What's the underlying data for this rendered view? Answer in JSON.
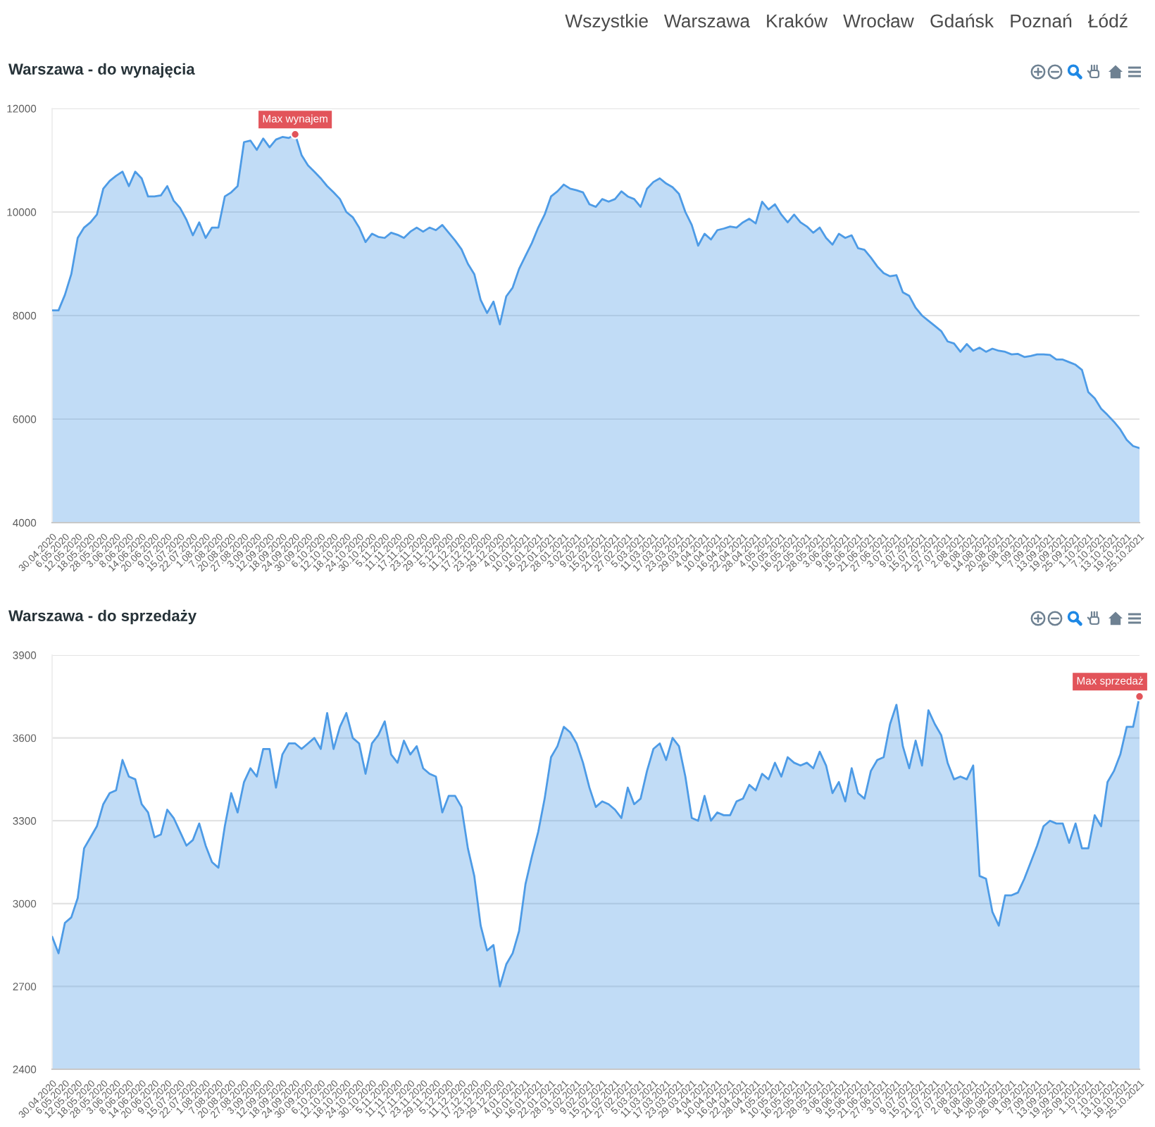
{
  "chart_data": [
    {
      "type": "area",
      "title": "Warszawa - do wynajęcia",
      "categories": [
        "30.04.2020",
        null,
        "6.05.2020",
        null,
        "12.05.2020",
        null,
        "18.05.2020",
        null,
        "28.05.2020",
        null,
        "3.06.2020",
        null,
        "8.06.2020",
        null,
        "14.06.2020",
        null,
        "20.06.2020",
        null,
        "9.07.2020",
        null,
        "15.07.2020",
        null,
        "22.07.2020",
        null,
        "1.08.2020",
        null,
        "7.08.2020",
        null,
        "20.08.2020",
        null,
        "27.08.2020",
        null,
        "3.09.2020",
        null,
        "12.09.2020",
        null,
        "18.09.2020",
        null,
        "24.09.2020",
        null,
        "30.09.2020",
        null,
        "6.10.2020",
        null,
        "12.10.2020",
        null,
        "18.10.2020",
        null,
        "24.10.2020",
        null,
        "30.10.2020",
        null,
        "5.11.2020",
        null,
        "11.11.2020",
        null,
        "17.11.2020",
        null,
        "23.11.2020",
        null,
        "29.11.2020",
        null,
        "5.12.2020",
        null,
        "11.12.2020",
        null,
        "17.12.2020",
        null,
        "23.12.2020",
        null,
        "29.12.2020",
        null,
        "4.01.2021",
        null,
        "10.01.2021",
        null,
        "16.01.2021",
        null,
        "22.01.2021",
        null,
        "28.01.2021",
        null,
        "3.02.2021",
        null,
        "9.02.2021",
        null,
        "15.02.2021",
        null,
        "21.02.2021",
        null,
        "27.02.2021",
        null,
        "5.03.2021",
        null,
        "11.03.2021",
        null,
        "17.03.2021",
        null,
        "23.03.2021",
        null,
        "29.03.2021",
        null,
        "4.04.2021",
        null,
        "10.04.2021",
        null,
        "16.04.2021",
        null,
        "22.04.2021",
        null,
        "28.04.2021",
        null,
        "4.05.2021",
        null,
        "10.05.2021",
        null,
        "16.05.2021",
        null,
        "22.05.2021",
        null,
        "28.05.2021",
        null,
        "3.06.2021",
        null,
        "9.06.2021",
        null,
        "15.06.2021",
        null,
        "21.06.2021",
        null,
        "27.06.2021",
        null,
        "3.07.2021",
        null,
        "9.07.2021",
        null,
        "15.07.2021",
        null,
        "21.07.2021",
        null,
        "27.07.2021",
        null,
        "2.08.2021",
        null,
        "8.08.2021",
        null,
        "14.08.2021",
        null,
        "20.08.2021",
        null,
        "26.08.2021",
        null,
        "1.09.2021",
        null,
        "7.09.2021",
        null,
        "13.09.2021",
        null,
        "19.09.2021",
        null,
        "25.09.2021",
        null,
        "1.10.2021",
        null,
        "7.10.2021",
        null,
        "13.10.2021",
        null,
        "19.10.2021",
        null,
        "25.10.2021"
      ],
      "values": [
        8100,
        8100,
        8400,
        8800,
        9500,
        9700,
        9800,
        9950,
        10450,
        10600,
        10700,
        10780,
        10500,
        10780,
        10650,
        10300,
        10300,
        10320,
        10500,
        10220,
        10080,
        9850,
        9550,
        9800,
        9500,
        9700,
        9700,
        10300,
        10380,
        10500,
        11350,
        11380,
        11200,
        11420,
        11250,
        11400,
        11450,
        11430,
        11500,
        11100,
        10900,
        10780,
        10650,
        10500,
        10380,
        10250,
        10000,
        9900,
        9700,
        9420,
        9580,
        9520,
        9500,
        9600,
        9560,
        9500,
        9620,
        9700,
        9620,
        9700,
        9650,
        9750,
        9600,
        9450,
        9280,
        9000,
        8800,
        8300,
        8050,
        8270,
        7830,
        8370,
        8540,
        8900,
        9150,
        9400,
        9700,
        9950,
        10300,
        10400,
        10530,
        10450,
        10420,
        10380,
        10150,
        10100,
        10250,
        10200,
        10250,
        10400,
        10300,
        10250,
        10100,
        10450,
        10580,
        10650,
        10550,
        10480,
        10350,
        10000,
        9750,
        9350,
        9580,
        9470,
        9650,
        9680,
        9720,
        9700,
        9800,
        9870,
        9780,
        10200,
        10050,
        10150,
        9950,
        9800,
        9950,
        9800,
        9720,
        9600,
        9700,
        9500,
        9370,
        9580,
        9500,
        9550,
        9300,
        9270,
        9120,
        8950,
        8820,
        8760,
        8780,
        8450,
        8380,
        8150,
        8000,
        7900,
        7800,
        7700,
        7500,
        7460,
        7300,
        7450,
        7320,
        7380,
        7300,
        7360,
        7320,
        7300,
        7250,
        7260,
        7200,
        7220,
        7250,
        7250,
        7240,
        7150,
        7150,
        7100,
        7050,
        6950,
        6520,
        6400,
        6200,
        6080,
        5950,
        5800,
        5600,
        5480,
        5440
      ],
      "color": "#4d9be6",
      "ylim": [
        4000,
        12000
      ],
      "yticks": [
        4000,
        6000,
        8000,
        10000,
        12000
      ],
      "grid": "y",
      "annotations": [
        "Wszystkie",
        "Warszawa",
        "Kraków",
        "Wrocław",
        "Gdańsk",
        "Poznań",
        "Łódź",
        {
          "text": "Max wynajem",
          "x": "24.09.2020",
          "y": 11500
        }
      ]
    },
    {
      "type": "area",
      "title": "Warszawa - do sprzedaży",
      "categories": [
        "30.04.2020",
        null,
        "6.05.2020",
        null,
        "12.05.2020",
        null,
        "18.05.2020",
        null,
        "28.05.2020",
        null,
        "3.06.2020",
        null,
        "8.06.2020",
        null,
        "14.06.2020",
        null,
        "20.06.2020",
        null,
        "9.07.2020",
        null,
        "15.07.2020",
        null,
        "22.07.2020",
        null,
        "1.08.2020",
        null,
        "7.08.2020",
        null,
        "20.08.2020",
        null,
        "27.08.2020",
        null,
        "3.09.2020",
        null,
        "12.09.2020",
        null,
        "18.09.2020",
        null,
        "24.09.2020",
        null,
        "30.09.2020",
        null,
        "6.10.2020",
        null,
        "12.10.2020",
        null,
        "18.10.2020",
        null,
        "24.10.2020",
        null,
        "30.10.2020",
        null,
        "5.11.2020",
        null,
        "11.11.2020",
        null,
        "17.11.2020",
        null,
        "23.11.2020",
        null,
        "29.11.2020",
        null,
        "5.12.2020",
        null,
        "11.12.2020",
        null,
        "17.12.2020",
        null,
        "23.12.2020",
        null,
        "29.12.2020",
        null,
        "4.01.2021",
        null,
        "10.01.2021",
        null,
        "16.01.2021",
        null,
        "22.01.2021",
        null,
        "28.01.2021",
        null,
        "3.02.2021",
        null,
        "9.02.2021",
        null,
        "15.02.2021",
        null,
        "21.02.2021",
        null,
        "27.02.2021",
        null,
        "5.03.2021",
        null,
        "11.03.2021",
        null,
        "17.03.2021",
        null,
        "23.03.2021",
        null,
        "29.03.2021",
        null,
        "4.04.2021",
        null,
        "10.04.2021",
        null,
        "16.04.2021",
        null,
        "22.04.2021",
        null,
        "28.04.2021",
        null,
        "4.05.2021",
        null,
        "10.05.2021",
        null,
        "16.05.2021",
        null,
        "22.05.2021",
        null,
        "28.05.2021",
        null,
        "3.06.2021",
        null,
        "9.06.2021",
        null,
        "15.06.2021",
        null,
        "21.06.2021",
        null,
        "27.06.2021",
        null,
        "3.07.2021",
        null,
        "9.07.2021",
        null,
        "15.07.2021",
        null,
        "21.07.2021",
        null,
        "27.07.2021",
        null,
        "2.08.2021",
        null,
        "8.08.2021",
        null,
        "14.08.2021",
        null,
        "20.08.2021",
        null,
        "26.08.2021",
        null,
        "1.09.2021",
        null,
        "7.09.2021",
        null,
        "13.09.2021",
        null,
        "19.09.2021",
        null,
        "25.09.2021",
        null,
        "1.10.2021",
        null,
        "7.10.2021",
        null,
        "13.10.2021",
        null,
        "19.10.2021",
        null,
        "25.10.2021"
      ],
      "values": [
        2880,
        2820,
        2930,
        2950,
        3020,
        3200,
        3240,
        3280,
        3360,
        3400,
        3410,
        3520,
        3460,
        3450,
        3360,
        3330,
        3240,
        3250,
        3340,
        3310,
        3260,
        3210,
        3230,
        3290,
        3210,
        3150,
        3130,
        3280,
        3400,
        3330,
        3440,
        3490,
        3460,
        3560,
        3560,
        3420,
        3540,
        3580,
        3580,
        3560,
        3580,
        3600,
        3560,
        3690,
        3560,
        3640,
        3690,
        3600,
        3580,
        3470,
        3580,
        3610,
        3660,
        3540,
        3510,
        3590,
        3540,
        3570,
        3490,
        3470,
        3460,
        3330,
        3390,
        3390,
        3350,
        3200,
        3100,
        2920,
        2830,
        2850,
        2700,
        2780,
        2820,
        2900,
        3070,
        3170,
        3260,
        3380,
        3530,
        3570,
        3640,
        3620,
        3580,
        3510,
        3420,
        3350,
        3370,
        3360,
        3340,
        3310,
        3420,
        3360,
        3380,
        3480,
        3560,
        3580,
        3520,
        3600,
        3570,
        3460,
        3310,
        3300,
        3390,
        3300,
        3330,
        3320,
        3320,
        3370,
        3380,
        3430,
        3410,
        3470,
        3450,
        3510,
        3460,
        3530,
        3510,
        3500,
        3510,
        3490,
        3550,
        3500,
        3400,
        3440,
        3370,
        3490,
        3400,
        3380,
        3480,
        3520,
        3530,
        3650,
        3720,
        3570,
        3490,
        3590,
        3500,
        3700,
        3650,
        3610,
        3510,
        3450,
        3460,
        3450,
        3500,
        3100,
        3090,
        2970,
        2920,
        3030,
        3030,
        3040,
        3090,
        3150,
        3210,
        3280,
        3300,
        3290,
        3290,
        3220,
        3290,
        3200,
        3200,
        3320,
        3280,
        3440,
        3480,
        3540,
        3640,
        3640,
        3750
      ],
      "color": "#4d9be6",
      "ylim": [
        2400,
        3900
      ],
      "yticks": [
        2400,
        2700,
        3000,
        3300,
        3600,
        3900
      ],
      "grid": "y",
      "annotations": [
        {
          "text": "Max sprzedaż",
          "x": "25.10.2021",
          "y": 3750
        }
      ]
    }
  ]
}
